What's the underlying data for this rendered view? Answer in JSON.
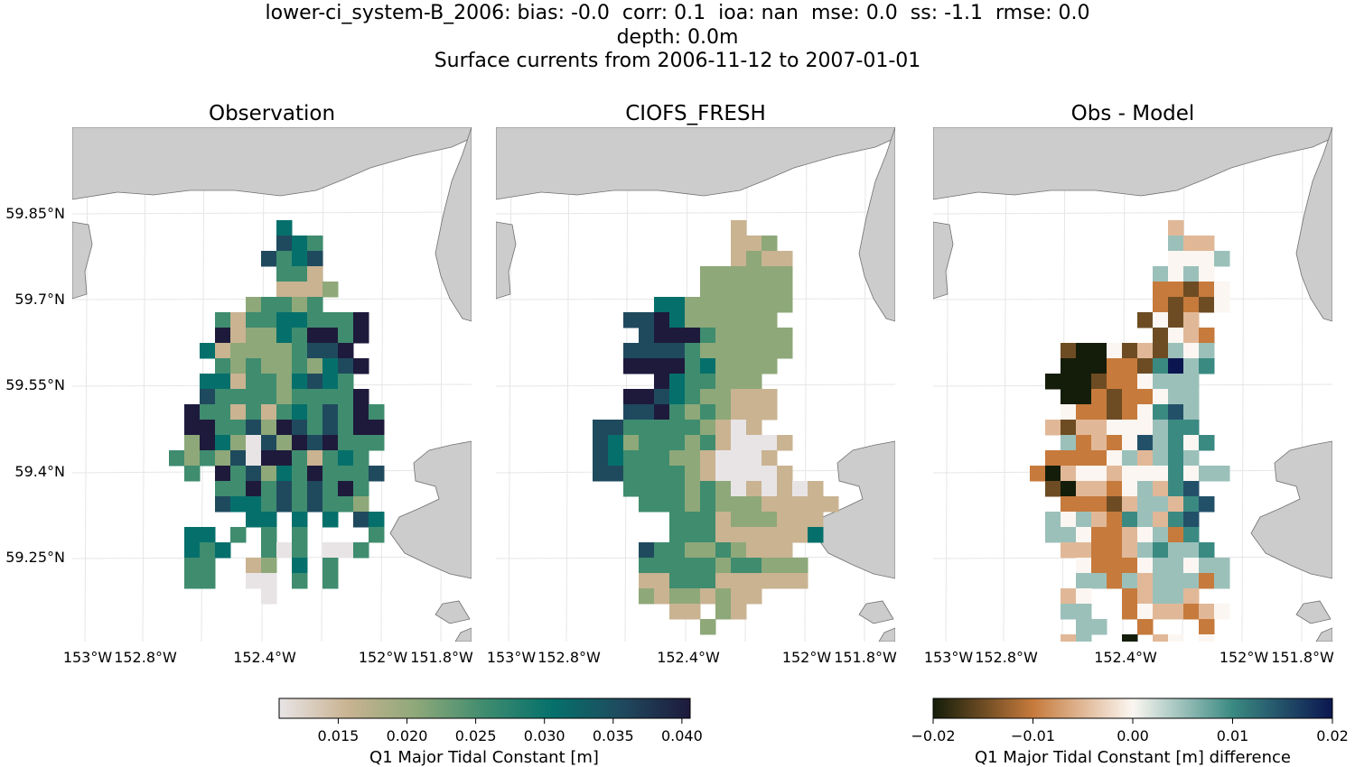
{
  "title_lines": [
    "lower-ci_system-B_2006: bias: -0.0  corr: 0.1  ioa: nan  mse: 0.0  ss: -1.1  rmse: 0.0",
    "depth: 0.0m",
    "Surface currents from 2006-11-12 to 2007-01-01"
  ],
  "colors": {
    "land": "#cccccc",
    "land_edge": "#707070",
    "grid": "#e6e6e6",
    "seq_cmap": [
      "#e8e4e6",
      "#c9b391",
      "#8ea879",
      "#3f8c6f",
      "#05706b",
      "#1f4a5e",
      "#1e1a3c"
    ],
    "div_cmap": [
      "#141d0a",
      "#c67a3c",
      "#fbf6f1",
      "#3a8a82",
      "#0b1650"
    ]
  },
  "chart_data": [
    {
      "type": "heatmap",
      "title": "Observation",
      "cmap": "seq",
      "xlabel": "",
      "ylabel": "",
      "xticks": [
        "153°W",
        "152.8°W",
        "152.4°W",
        "152°W",
        "151.8°W"
      ],
      "yticks": [
        "59.85°N",
        "59.7°N",
        "59.55°N",
        "59.4°N",
        "59.25°N"
      ],
      "value_range": [
        0.011,
        0.04
      ],
      "grid": true,
      "grid_origin_row": 6,
      "grid_origin_col": 10,
      "values": [
        "........4.......",
        "........543.....",
        ".......5345.....",
        "........331.....",
        "........1112....",
        "......23323.....",
        "....3133443336..",
        "....6122436636..",
        "...4122223556...",
        "....3232232456..",
        "...4413324543...",
        "...53333233336..",
        "..6331313435363.",
        "..6633526535366.",
        "..2642052656333.",
        ".3232506631343..",
        "..3.63524363335.",
        "....3363535363..",
        "....5443535332..",
        "......44.4.4.54.",
        "..44.3.3.3....3.",
        "..434..303.003..",
        "..33..12.4.3....",
        "..33..00.3.3....",
        ".......0........"
      ]
    },
    {
      "type": "heatmap",
      "title": "CIOFS_FRESH",
      "cmap": "seq",
      "xlabel": "",
      "ylabel": "",
      "xticks": [
        "153°W",
        "152.8°W",
        "152.4°W",
        "152°W",
        "151.8°W"
      ],
      "yticks": [
        "59.85°N",
        "59.7°N",
        "59.55°N",
        "59.4°N",
        "59.25°N"
      ],
      "value_range": [
        0.011,
        0.04
      ],
      "grid": true,
      "grid_origin_row": 6,
      "grid_origin_col": 10,
      "values": [
        "..........1......",
        "..........112....",
        "..........1211...",
        "........222222...",
        "........222222...",
        ".....442222222...",
        "...5564222222....",
        "....5666322222...",
        "...55553222222...",
        "...6666342222....",
        ".....6433222.....",
        "...6654322111....",
        "...5563232111....",
        ".55333332101.....",
        ".5423332310001...",
        ".543332210001....",
        ".5533332100001...",
        "...3333232010101.",
        "....3332322211111",
        "......3331222111.",
        "......3331111114.",
        "....5332232111...",
        "....33333233222..",
        "....11333111111..",
        "....21221211.....",
        "......11.21......",
        "........2........"
      ]
    },
    {
      "type": "heatmap",
      "title": "Obs - Model",
      "cmap": "div",
      "xlabel": "",
      "ylabel": "",
      "xticks": [
        "153°W",
        "152.8°W",
        "152.4°W",
        "152°W",
        "151.8°W"
      ],
      "yticks": [
        "59.85°N",
        "59.7°N",
        "59.55°N",
        "59.4°N",
        "59.25°N"
      ],
      "value_range": [
        -0.02,
        0.02
      ],
      "grid": true,
      "grid_origin_row": 6,
      "grid_origin_col": 10,
      "values": [
        "..........3......",
        "..........533....",
        "..........4445...",
        ".........5454....",
        ".........22124...",
        ".........21214...",
        "........1413.....",
        ".........1432....",
        "...1004131545....",
        "...0002216856....",
        "..0001224555....",
        "...002122455.....",
        "...422124675.....",
        "..3133444566.....",
        "...5232475646....",
        "..2222453565.....",
        ".2034434446455...",
        "..1033245367.....",
        "...2221355367....",
        "..5453265367.....",
        "..5542234526.....",
        "...3322356556....",
        "....4222455455...",
        "....5525355525...",
        "...34..23553.....",
        "...55..2433234...",
        "....55..2...2....",
        "...35..0.34.4....",
        "..33.....2.2.....",
        ".........2......."
      ]
    }
  ],
  "colorbars": [
    {
      "label": "Q1 Major Tidal Constant [m]",
      "cmap": "seq",
      "ticks": [
        "0.015",
        "0.020",
        "0.025",
        "0.030",
        "0.035",
        "0.040"
      ],
      "tick_values": [
        0.015,
        0.02,
        0.025,
        0.03,
        0.035,
        0.04
      ],
      "range": [
        0.0107,
        0.0406
      ]
    },
    {
      "label": "Q1 Major Tidal Constant [m] difference",
      "cmap": "div",
      "ticks": [
        "−0.02",
        "−0.01",
        "0.00",
        "0.01",
        "0.02"
      ],
      "tick_values": [
        -0.02,
        -0.01,
        0.0,
        0.01,
        0.02
      ],
      "range": [
        -0.02,
        0.02
      ]
    }
  ]
}
